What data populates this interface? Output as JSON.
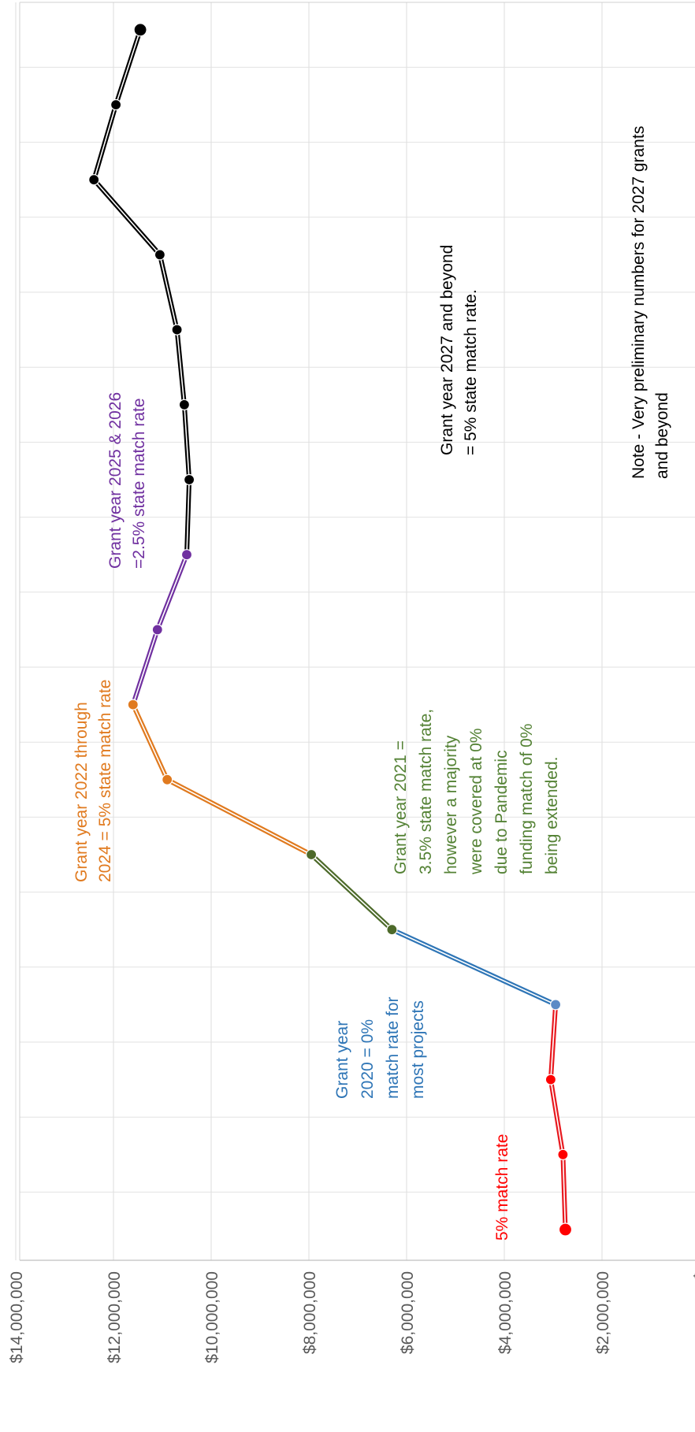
{
  "chart_data": {
    "type": "line",
    "orientation": "rotated-90-clockwise",
    "value_axis": {
      "min": 0,
      "max": 14000000,
      "step": 2000000,
      "tick_labels": [
        "$14,000,000",
        "$12,000,000",
        "$10,000,000",
        "$8,000,000",
        "$6,000,000",
        "$4,000,000",
        "$2,000,000",
        "$"
      ]
    },
    "category_count": 17,
    "gridlines": true,
    "segments": [
      {
        "color": "#e8191f",
        "points": [
          [
            1,
            2750000
          ],
          [
            2,
            2800000
          ],
          [
            3,
            3050000
          ],
          [
            4,
            2950000
          ]
        ]
      },
      {
        "color": "#2e75b6",
        "points": [
          [
            4,
            2950000
          ],
          [
            5,
            6300000
          ]
        ]
      },
      {
        "color": "#4d6a2a",
        "points": [
          [
            5,
            6300000
          ],
          [
            6,
            7950000
          ]
        ]
      },
      {
        "color": "#e07a1f",
        "points": [
          [
            6,
            7950000
          ],
          [
            7,
            10900000
          ],
          [
            8,
            11600000
          ]
        ]
      },
      {
        "color": "#7030a0",
        "points": [
          [
            8,
            11600000
          ],
          [
            9,
            11100000
          ],
          [
            10,
            10500000
          ]
        ]
      },
      {
        "color": "#000000",
        "points": [
          [
            10,
            10500000
          ],
          [
            11,
            10450000
          ],
          [
            12,
            10550000
          ],
          [
            13,
            10700000
          ],
          [
            14,
            11050000
          ],
          [
            15,
            12400000
          ],
          [
            16,
            11950000
          ],
          [
            17,
            11450000
          ]
        ]
      }
    ],
    "markers": [
      {
        "x": 1,
        "y": 2750000,
        "color": "#ff0000"
      },
      {
        "x": 2,
        "y": 2800000,
        "color": "#ff0000"
      },
      {
        "x": 3,
        "y": 3050000,
        "color": "#ff0000"
      },
      {
        "x": 4,
        "y": 2950000,
        "color": "#5b8ac6"
      },
      {
        "x": 5,
        "y": 6300000,
        "color": "#4d6a2a"
      },
      {
        "x": 6,
        "y": 7950000,
        "color": "#4d6a2a"
      },
      {
        "x": 7,
        "y": 10900000,
        "color": "#e07a1f"
      },
      {
        "x": 8,
        "y": 11600000,
        "color": "#e07a1f"
      },
      {
        "x": 9,
        "y": 11100000,
        "color": "#7030a0"
      },
      {
        "x": 10,
        "y": 10500000,
        "color": "#7030a0"
      },
      {
        "x": 11,
        "y": 10450000,
        "color": "#000000"
      },
      {
        "x": 12,
        "y": 10550000,
        "color": "#000000"
      },
      {
        "x": 13,
        "y": 10700000,
        "color": "#000000"
      },
      {
        "x": 14,
        "y": 11050000,
        "color": "#000000"
      },
      {
        "x": 15,
        "y": 12400000,
        "color": "#000000"
      },
      {
        "x": 16,
        "y": 11950000,
        "color": "#000000"
      },
      {
        "x": 17,
        "y": 11450000,
        "color": "#000000"
      }
    ],
    "annotations": [
      {
        "id": "match-5",
        "color": "#ff0000",
        "lines": [
          "5% match rate"
        ]
      },
      {
        "id": "gy-2020",
        "color": "#2e75b6",
        "lines": [
          "Grant year",
          "2020 = 0%",
          "match rate for",
          "most projects"
        ]
      },
      {
        "id": "gy-2021",
        "color": "#548235",
        "lines": [
          "Grant year 2021 =",
          "3.5% state match rate,",
          "however a majority",
          "were covered at 0%",
          "due to Pandemic",
          "funding match of 0%",
          "being extended."
        ]
      },
      {
        "id": "gy-2022",
        "color": "#e07a1f",
        "lines": [
          "Grant year 2022 through",
          "2024  = 5% state match rate"
        ]
      },
      {
        "id": "gy-2025",
        "color": "#7030a0",
        "lines": [
          "Grant year 2025 & 2026",
          "=2.5% state match rate"
        ]
      },
      {
        "id": "gy-2027",
        "color": "#000000",
        "lines": [
          "Grant year 2027 and beyond",
          "= 5% state match rate."
        ]
      },
      {
        "id": "note",
        "color": "#000000",
        "lines": [
          "Note - Very preliminary numbers for 2027 grants",
          "and beyond"
        ]
      }
    ]
  }
}
